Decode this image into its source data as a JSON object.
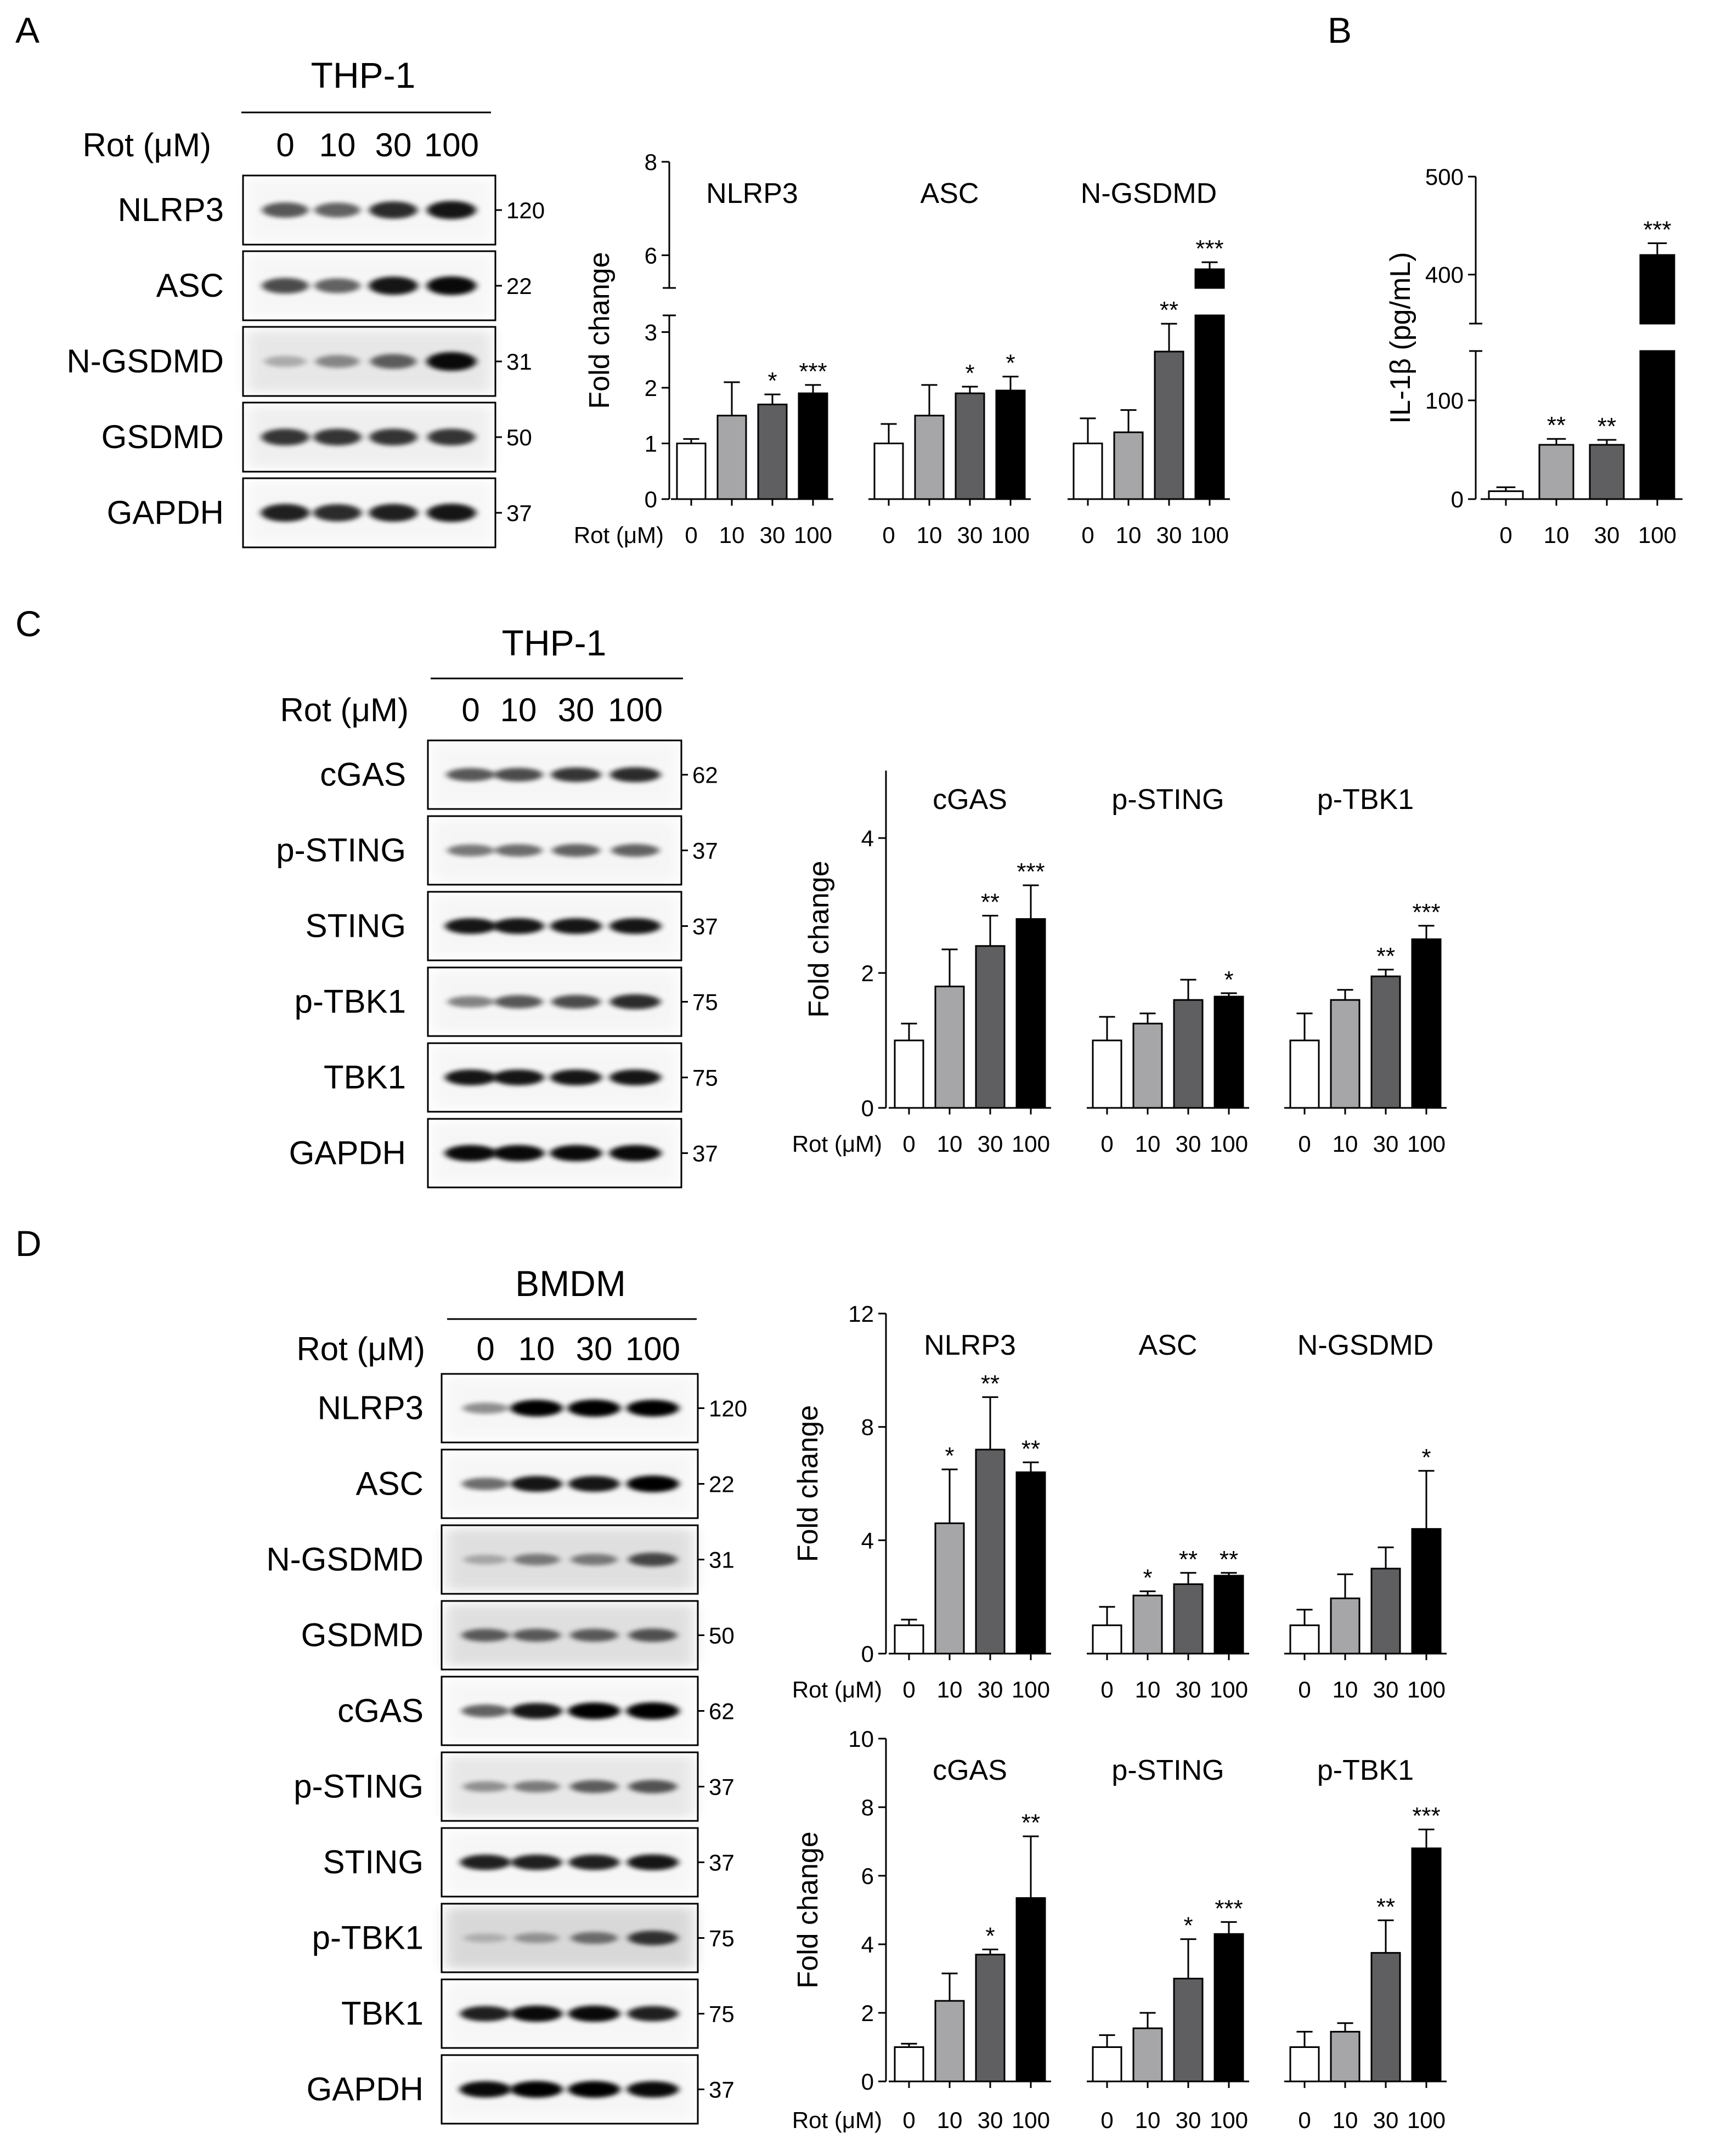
{
  "panels": [
    {
      "id": "A",
      "letter": "A",
      "blot": {
        "cell_line": "THP-1",
        "treatment_label": "Rot (μM)",
        "doses": [
          "0",
          "10",
          "30",
          "100"
        ],
        "rows": [
          {
            "name": "NLRP3",
            "mw": "120",
            "intensity": [
              0.55,
              0.5,
              0.75,
              0.85
            ],
            "noise": 0.05
          },
          {
            "name": "ASC",
            "mw": "22",
            "intensity": [
              0.6,
              0.5,
              0.85,
              0.9
            ],
            "noise": 0.05
          },
          {
            "name": "N-GSDMD",
            "mw": "31",
            "intensity": [
              0.12,
              0.3,
              0.5,
              0.9
            ],
            "noise": 0.15
          },
          {
            "name": "GSDMD",
            "mw": "50",
            "intensity": [
              0.7,
              0.7,
              0.7,
              0.7
            ],
            "noise": 0.1
          },
          {
            "name": "GAPDH",
            "mw": "37",
            "intensity": [
              0.8,
              0.75,
              0.8,
              0.85
            ],
            "noise": 0.05
          }
        ]
      },
      "chart_data": {
        "type": "bar",
        "ylabel": "Fold change",
        "xlabel": "Rot (μM)",
        "categories": [
          "0",
          "10",
          "30",
          "100"
        ],
        "yticks": [
          "0",
          "1",
          "2",
          "3",
          "6",
          "8"
        ],
        "axis_break": {
          "lower": [
            0,
            3.3
          ],
          "upper": [
            5.3,
            8
          ]
        },
        "groups": [
          {
            "name": "NLRP3",
            "values": [
              1.0,
              1.5,
              1.7,
              1.9
            ],
            "errors": [
              0.08,
              0.6,
              0.18,
              0.15
            ],
            "sig": [
              "",
              "",
              "*",
              "***"
            ]
          },
          {
            "name": "ASC",
            "values": [
              1.0,
              1.5,
              1.9,
              1.95
            ],
            "errors": [
              0.35,
              0.55,
              0.12,
              0.25
            ],
            "sig": [
              "",
              "",
              "*",
              "*"
            ]
          },
          {
            "name": "N-GSDMD",
            "values": [
              1.0,
              1.2,
              2.65,
              5.7
            ],
            "errors": [
              0.45,
              0.4,
              0.5,
              0.15
            ],
            "sig": [
              "",
              "",
              "**",
              "***"
            ]
          }
        ]
      }
    },
    {
      "id": "B",
      "letter": "B",
      "chart_data": {
        "type": "bar",
        "ylabel": "IL-1β (pg/mL)",
        "categories": [
          "0",
          "10",
          "30",
          "100"
        ],
        "yticks": [
          "0",
          "100",
          "400",
          "500"
        ],
        "axis_break": {
          "lower": [
            0,
            150
          ],
          "upper": [
            350,
            500
          ]
        },
        "values": [
          8,
          55,
          55,
          420
        ],
        "errors": [
          4,
          6,
          5,
          12
        ],
        "sig": [
          "",
          "**",
          "**",
          "***"
        ]
      }
    },
    {
      "id": "C",
      "letter": "C",
      "blot": {
        "cell_line": "THP-1",
        "treatment_label": "Rot (μM)",
        "doses": [
          "0",
          "10",
          "30",
          "100"
        ],
        "rows": [
          {
            "name": "cGAS",
            "mw": "62",
            "intensity": [
              0.55,
              0.6,
              0.7,
              0.75
            ],
            "noise": 0.05
          },
          {
            "name": "p-STING",
            "mw": "37",
            "intensity": [
              0.4,
              0.45,
              0.5,
              0.5
            ],
            "noise": 0.06
          },
          {
            "name": "STING",
            "mw": "37",
            "intensity": [
              0.85,
              0.85,
              0.85,
              0.85
            ],
            "noise": 0.05
          },
          {
            "name": "p-TBK1",
            "mw": "75",
            "intensity": [
              0.35,
              0.55,
              0.6,
              0.75
            ],
            "noise": 0.06
          },
          {
            "name": "TBK1",
            "mw": "75",
            "intensity": [
              0.85,
              0.85,
              0.85,
              0.85
            ],
            "noise": 0.05
          },
          {
            "name": "GAPDH",
            "mw": "37",
            "intensity": [
              0.9,
              0.9,
              0.9,
              0.9
            ],
            "noise": 0.05
          }
        ]
      },
      "chart_data": {
        "type": "bar",
        "ylabel": "Fold change",
        "xlabel": "Rot (μM)",
        "categories": [
          "0",
          "10",
          "30",
          "100"
        ],
        "ylim": [
          0,
          5
        ],
        "yticks": [
          "0",
          "2",
          "4"
        ],
        "groups": [
          {
            "name": "cGAS",
            "values": [
              1.0,
              1.8,
              2.4,
              2.8
            ],
            "errors": [
              0.25,
              0.55,
              0.45,
              0.5
            ],
            "sig": [
              "",
              "",
              "**",
              "***"
            ]
          },
          {
            "name": "p-STING",
            "values": [
              1.0,
              1.25,
              1.6,
              1.65
            ],
            "errors": [
              0.35,
              0.15,
              0.3,
              0.05
            ],
            "sig": [
              "",
              "",
              "",
              "*"
            ]
          },
          {
            "name": "p-TBK1",
            "values": [
              1.0,
              1.6,
              1.95,
              2.5
            ],
            "errors": [
              0.4,
              0.15,
              0.1,
              0.2
            ],
            "sig": [
              "",
              "",
              "**",
              "***"
            ]
          }
        ]
      }
    },
    {
      "id": "D",
      "letter": "D",
      "blot": {
        "cell_line": "BMDM",
        "treatment_label": "Rot (μM)",
        "doses": [
          "0",
          "10",
          "30",
          "100"
        ],
        "rows": [
          {
            "name": "NLRP3",
            "mw": "120",
            "intensity": [
              0.3,
              0.95,
              1.0,
              0.95
            ],
            "noise": 0.05
          },
          {
            "name": "ASC",
            "mw": "22",
            "intensity": [
              0.45,
              0.85,
              0.85,
              0.95
            ],
            "noise": 0.05
          },
          {
            "name": "N-GSDMD",
            "mw": "31",
            "intensity": [
              0.12,
              0.35,
              0.35,
              0.6
            ],
            "noise": 0.2
          },
          {
            "name": "GSDMD",
            "mw": "50",
            "intensity": [
              0.5,
              0.5,
              0.5,
              0.55
            ],
            "noise": 0.2
          },
          {
            "name": "cGAS",
            "mw": "62",
            "intensity": [
              0.5,
              0.85,
              0.95,
              1.0
            ],
            "noise": 0.05
          },
          {
            "name": "p-STING",
            "mw": "37",
            "intensity": [
              0.25,
              0.35,
              0.5,
              0.55
            ],
            "noise": 0.15
          },
          {
            "name": "STING",
            "mw": "37",
            "intensity": [
              0.8,
              0.8,
              0.8,
              0.85
            ],
            "noise": 0.05
          },
          {
            "name": "p-TBK1",
            "mw": "75",
            "intensity": [
              0.05,
              0.2,
              0.4,
              0.7
            ],
            "noise": 0.25
          },
          {
            "name": "TBK1",
            "mw": "75",
            "intensity": [
              0.8,
              0.9,
              0.9,
              0.8
            ],
            "noise": 0.05
          },
          {
            "name": "GAPDH",
            "mw": "37",
            "intensity": [
              0.9,
              0.95,
              0.95,
              0.9
            ],
            "noise": 0.05
          }
        ]
      },
      "charts": [
        {
          "chart_data": {
            "type": "bar",
            "ylabel": "Fold change",
            "xlabel": "Rot (μM)",
            "categories": [
              "0",
              "10",
              "30",
              "100"
            ],
            "ylim": [
              0,
              12
            ],
            "yticks": [
              "0",
              "4",
              "8",
              "12"
            ],
            "groups": [
              {
                "name": "NLRP3",
                "values": [
                  1.0,
                  4.6,
                  7.2,
                  6.4
                ],
                "errors": [
                  0.2,
                  1.9,
                  1.85,
                  0.35
                ],
                "sig": [
                  "",
                  "*",
                  "**",
                  "**"
                ]
              },
              {
                "name": "ASC",
                "values": [
                  1.0,
                  2.05,
                  2.45,
                  2.75
                ],
                "errors": [
                  0.65,
                  0.15,
                  0.4,
                  0.1
                ],
                "sig": [
                  "",
                  "*",
                  "**",
                  "**"
                ]
              },
              {
                "name": "N-GSDMD",
                "values": [
                  1.0,
                  1.95,
                  3.0,
                  4.4
                ],
                "errors": [
                  0.55,
                  0.85,
                  0.75,
                  2.05
                ],
                "sig": [
                  "",
                  "",
                  "",
                  "*"
                ]
              }
            ]
          }
        },
        {
          "chart_data": {
            "type": "bar",
            "ylabel": "Fold change",
            "xlabel": "Rot (μM)",
            "categories": [
              "0",
              "10",
              "30",
              "100"
            ],
            "ylim": [
              0,
              10
            ],
            "yticks": [
              "0",
              "2",
              "4",
              "6",
              "8",
              "10"
            ],
            "groups": [
              {
                "name": "cGAS",
                "values": [
                  1.0,
                  2.35,
                  3.7,
                  5.35
                ],
                "errors": [
                  0.1,
                  0.8,
                  0.15,
                  1.8
                ],
                "sig": [
                  "",
                  "",
                  "*",
                  "**"
                ]
              },
              {
                "name": "p-STING",
                "values": [
                  1.0,
                  1.55,
                  3.0,
                  4.3
                ],
                "errors": [
                  0.35,
                  0.45,
                  1.15,
                  0.35
                ],
                "sig": [
                  "",
                  "",
                  "*",
                  "***"
                ]
              },
              {
                "name": "p-TBK1",
                "values": [
                  1.0,
                  1.45,
                  3.75,
                  6.8
                ],
                "errors": [
                  0.45,
                  0.25,
                  0.95,
                  0.55
                ],
                "sig": [
                  "",
                  "",
                  "**",
                  "***"
                ]
              }
            ]
          }
        }
      ]
    }
  ],
  "bar_colors": [
    "#ffffff",
    "#a6a6a8",
    "#5f5f61",
    "#000000"
  ]
}
